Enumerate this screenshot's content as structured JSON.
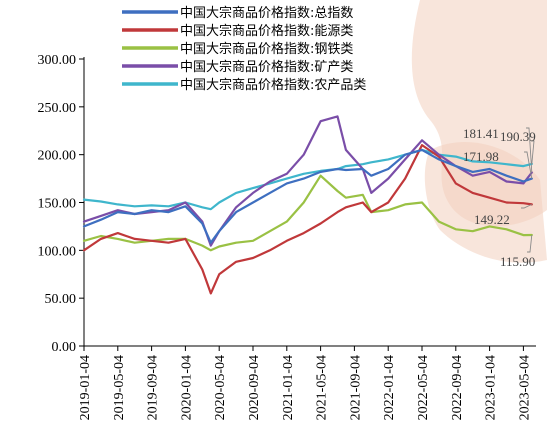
{
  "chart_data": {
    "type": "line",
    "title": "",
    "xlabel": "",
    "ylabel": "",
    "ylim": [
      0,
      300
    ],
    "yticks": [
      "0.00",
      "50.00",
      "100.00",
      "150.00",
      "200.00",
      "250.00",
      "300.00"
    ],
    "xticks": [
      "2019-01-04",
      "2019-05-04",
      "2019-09-04",
      "2020-01-04",
      "2020-05-04",
      "2020-09-04",
      "2021-01-04",
      "2021-05-04",
      "2021-09-04",
      "2022-01-04",
      "2022-05-04",
      "2022-09-04",
      "2023-01-04",
      "2023-05-04"
    ],
    "legend_position": "top",
    "grid": false,
    "x": [
      "2019-01",
      "2019-03",
      "2019-05",
      "2019-07",
      "2019-09",
      "2019-11",
      "2020-01",
      "2020-03",
      "2020-04",
      "2020-05",
      "2020-07",
      "2020-09",
      "2020-11",
      "2021-01",
      "2021-03",
      "2021-05",
      "2021-07",
      "2021-08",
      "2021-10",
      "2021-11",
      "2022-01",
      "2022-03",
      "2022-05",
      "2022-07",
      "2022-09",
      "2022-11",
      "2023-01",
      "2023-03",
      "2023-05",
      "2023-06"
    ],
    "series": [
      {
        "name": "中国大宗商品价格指数:总指数",
        "color": "#3e6fc0",
        "values": [
          125,
          132,
          140,
          138,
          142,
          140,
          146,
          128,
          108,
          120,
          140,
          150,
          160,
          170,
          175,
          182,
          185,
          184,
          185,
          178,
          185,
          200,
          205,
          195,
          188,
          182,
          185,
          178,
          172,
          175
        ]
      },
      {
        "name": "中国大宗商品价格指数:能源类",
        "color": "#c0383a",
        "values": [
          100,
          112,
          118,
          112,
          110,
          108,
          112,
          80,
          55,
          75,
          88,
          92,
          100,
          110,
          118,
          128,
          140,
          145,
          150,
          140,
          150,
          175,
          210,
          198,
          170,
          160,
          155,
          150,
          149.22,
          148
        ]
      },
      {
        "name": "中国大宗商品价格指数:钢铁类",
        "color": "#9ac144",
        "values": [
          110,
          115,
          112,
          108,
          110,
          112,
          112,
          105,
          100,
          104,
          108,
          110,
          120,
          130,
          150,
          178,
          162,
          155,
          158,
          140,
          142,
          148,
          150,
          130,
          122,
          120,
          125,
          122,
          115.9,
          116
        ]
      },
      {
        "name": "中国大宗商品价格指数:矿产类",
        "color": "#7a4ea8",
        "values": [
          130,
          136,
          142,
          138,
          140,
          142,
          150,
          130,
          105,
          120,
          145,
          160,
          172,
          180,
          200,
          235,
          240,
          205,
          185,
          160,
          175,
          195,
          215,
          200,
          188,
          178,
          182,
          171.98,
          170,
          181.41
        ]
      },
      {
        "name": "中国大宗商品价格指数:农产品类",
        "color": "#3fb6cc",
        "values": [
          153,
          151,
          148,
          146,
          147,
          146,
          150,
          145,
          143,
          150,
          160,
          165,
          170,
          175,
          180,
          183,
          185,
          188,
          190,
          192,
          195,
          200,
          205,
          200,
          198,
          193,
          192,
          190,
          188,
          190.39
        ]
      }
    ],
    "annotations": [
      {
        "text": "190.39",
        "series": 4
      },
      {
        "text": "181.41",
        "series": 3
      },
      {
        "text": "171.98",
        "series": 0
      },
      {
        "text": "149.22",
        "series": 1
      },
      {
        "text": "115.90",
        "series": 2
      }
    ]
  }
}
